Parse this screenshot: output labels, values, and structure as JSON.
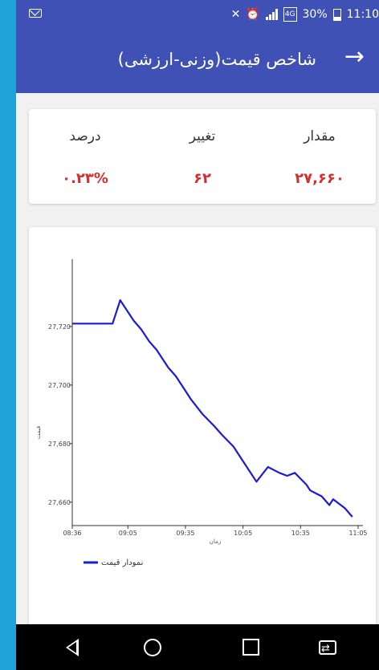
{
  "status_bar": {
    "battery": "30%",
    "time": "11:10",
    "network_badge": "4G"
  },
  "app_bar": {
    "title": "شاخص قیمت(وزنی-ارزشی)",
    "back_icon": "arrow-right-icon"
  },
  "summary": {
    "columns": [
      {
        "header": "مقدار",
        "value": "۲۷,۶۶۰"
      },
      {
        "header": "تغییر",
        "value": "۶۲"
      },
      {
        "header": "درصد",
        "value": "۰.۲۳%"
      }
    ],
    "value_color": "#d32f2f"
  },
  "chart_data": {
    "type": "line",
    "x_ticks": [
      "08:36",
      "09:05",
      "09:35",
      "10:05",
      "10:35",
      "11:05"
    ],
    "xlabel": "زمان",
    "ylabel": "قیمت",
    "y_ticks": [
      27660,
      27680,
      27700,
      27720
    ],
    "y_tick_labels": [
      "27,660",
      "27,680",
      "27,700",
      "27,720"
    ],
    "xlim_minutes": [
      516,
      665
    ],
    "ylim": [
      27652,
      27743
    ],
    "series": [
      {
        "name": "نمودار قیمت",
        "color": "#1a1adb",
        "x_minutes": [
          516,
          537,
          541,
          543,
          548,
          552,
          556,
          560,
          566,
          570,
          574,
          578,
          584,
          590,
          594,
          600,
          606,
          612,
          618,
          624,
          628,
          632,
          635,
          638,
          640,
          643,
          646,
          650,
          652,
          658,
          662
        ],
        "values": [
          27721,
          27721,
          27729,
          27727,
          27722,
          27719,
          27715,
          27712,
          27706,
          27703,
          27699,
          27695,
          27690,
          27686,
          27683,
          27679,
          27673,
          27667,
          27672,
          27670,
          27669,
          27670,
          27668,
          27666,
          27664,
          27663,
          27662,
          27659,
          27661,
          27658,
          27655
        ]
      }
    ]
  },
  "nav_bar": {
    "back": "back-triangle-icon",
    "home": "home-circle-icon",
    "overview": "overview-square-icon",
    "extra": "switch-apps-icon"
  }
}
